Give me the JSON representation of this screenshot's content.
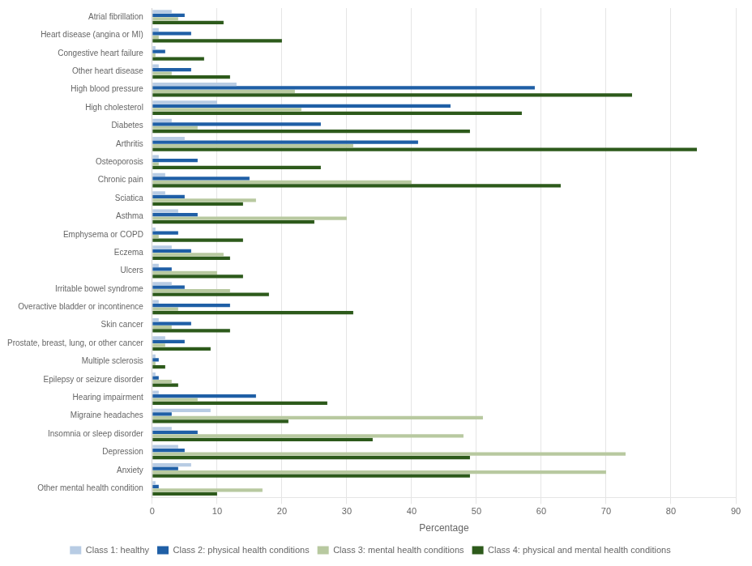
{
  "chart_data": {
    "type": "bar",
    "orientation": "horizontal",
    "categories": [
      "Atrial fibrillation",
      "Heart disease (angina or MI)",
      "Congestive heart failure",
      "Other heart disease",
      "High blood pressure",
      "High cholesterol",
      "Diabetes",
      "Arthritis",
      "Osteoporosis",
      "Chronic pain",
      "Sciatica",
      "Asthma",
      "Emphysema or COPD",
      "Eczema",
      "Ulcers",
      "Irritable bowel syndrome",
      "Overactive bladder or incontinence",
      "Skin cancer",
      "Prostate, breast, lung, or other cancer",
      "Multiple sclerosis",
      "Epilepsy or seizure disorder",
      "Hearing impairment",
      "Migraine headaches",
      "Insomnia or sleep disorder",
      "Depression",
      "Anxiety",
      "Other mental health condition"
    ],
    "series": [
      {
        "name": "Class 1: healthy",
        "color": "#b8cce4",
        "values": [
          3,
          1,
          0.5,
          1,
          13,
          10,
          3,
          5,
          1,
          2,
          2,
          4,
          0.5,
          3,
          1,
          3,
          1,
          1,
          2,
          0.5,
          0.5,
          1,
          9,
          3,
          4,
          6,
          0.5
        ]
      },
      {
        "name": "Class 2: physical health conditions",
        "color": "#1f5fa6",
        "values": [
          5,
          6,
          2,
          6,
          59,
          46,
          26,
          41,
          7,
          15,
          5,
          7,
          4,
          6,
          3,
          5,
          12,
          6,
          5,
          1,
          1,
          16,
          3,
          7,
          5,
          4,
          1
        ]
      },
      {
        "name": "Class 3: mental health conditions",
        "color": "#b8c9a0",
        "values": [
          4,
          1,
          0.5,
          3,
          22,
          23,
          7,
          31,
          1,
          40,
          16,
          30,
          1,
          11,
          10,
          12,
          4,
          3,
          2,
          0.5,
          3,
          7,
          51,
          48,
          73,
          70,
          17
        ]
      },
      {
        "name": "Class 4: physical and mental health conditions",
        "color": "#2d5a1b",
        "values": [
          11,
          20,
          8,
          12,
          74,
          57,
          49,
          84,
          26,
          63,
          14,
          25,
          14,
          12,
          14,
          18,
          31,
          12,
          9,
          2,
          4,
          27,
          21,
          34,
          49,
          49,
          10
        ]
      }
    ],
    "xlabel": "Percentage",
    "xlim": [
      0,
      90
    ],
    "xticks": [
      0,
      10,
      20,
      30,
      40,
      50,
      60,
      70,
      80,
      90
    ],
    "grid": true,
    "legend": "bottom"
  }
}
